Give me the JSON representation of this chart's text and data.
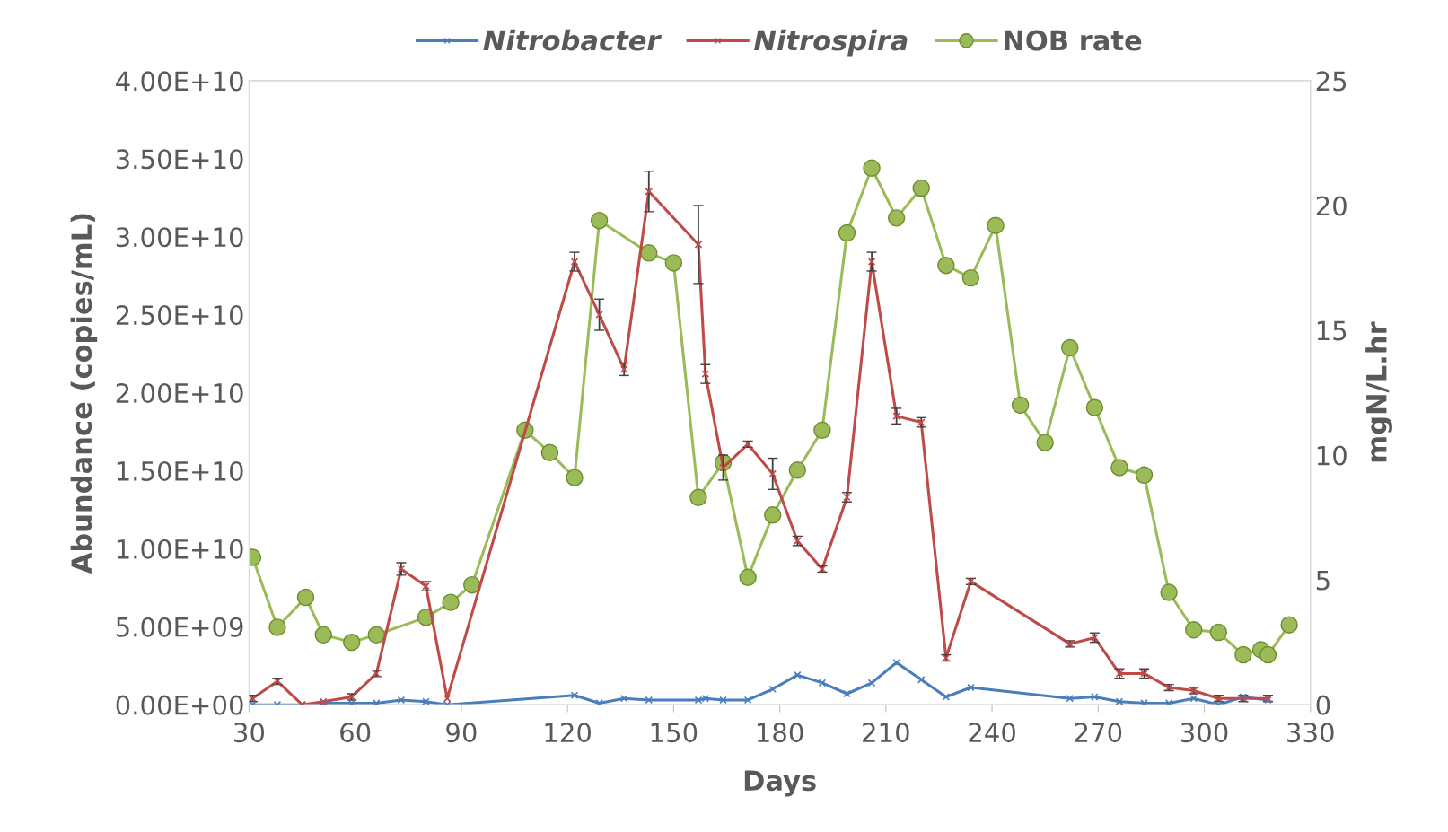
{
  "chart_data": {
    "type": "line",
    "xlabel": "Days",
    "ylabel": "Abundance (copies/mL)",
    "y2label": "mgN/L.hr",
    "xlim": [
      30,
      330
    ],
    "xticks": [
      30,
      60,
      90,
      120,
      150,
      180,
      210,
      240,
      270,
      300,
      330
    ],
    "ylim": [
      0,
      40000000000.0
    ],
    "yticks": [
      {
        "value": 0,
        "label": "0.00E+00"
      },
      {
        "value": 5000000000.0,
        "label": "5.00E+09"
      },
      {
        "value": 10000000000.0,
        "label": "1.00E+10"
      },
      {
        "value": 15000000000.0,
        "label": "1.50E+10"
      },
      {
        "value": 20000000000.0,
        "label": "2.00E+10"
      },
      {
        "value": 25000000000.0,
        "label": "2.50E+10"
      },
      {
        "value": 30000000000.0,
        "label": "3.00E+10"
      },
      {
        "value": 35000000000.0,
        "label": "3.50E+10"
      },
      {
        "value": 40000000000.0,
        "label": "4.00E+10"
      }
    ],
    "y2lim": [
      0,
      25
    ],
    "y2ticks": [
      0,
      5,
      10,
      15,
      20,
      25
    ],
    "legend": "top",
    "grid": false,
    "series": [
      {
        "name": "Nitrobacter",
        "color": "#4a7ebb",
        "marker": "cross",
        "x": [
          31,
          38,
          45,
          51,
          59,
          66,
          73,
          80,
          86,
          122,
          129,
          136,
          143,
          157,
          159,
          164,
          171,
          178,
          185,
          192,
          199,
          206,
          213,
          220,
          227,
          234,
          262,
          269,
          276,
          283,
          290,
          297,
          304,
          311,
          318
        ],
        "values": [
          0,
          0,
          0,
          100000000.0,
          100000000.0,
          100000000.0,
          300000000.0,
          200000000.0,
          0,
          600000000.0,
          100000000.0,
          400000000.0,
          300000000.0,
          300000000.0,
          400000000.0,
          300000000.0,
          300000000.0,
          1000000000.0,
          1900000000.0,
          1400000000.0,
          700000000.0,
          1400000000.0,
          2700000000.0,
          1600000000.0,
          500000000.0,
          1100000000.0,
          400000000.0,
          500000000.0,
          200000000.0,
          100000000.0,
          100000000.0,
          400000000.0,
          0,
          500000000.0,
          300000000.0
        ]
      },
      {
        "name": "Nitrospira",
        "color": "#be4b48",
        "marker": "cross",
        "x": [
          31,
          38,
          45,
          51,
          59,
          66,
          73,
          80,
          86,
          122,
          129,
          136,
          143,
          157,
          159,
          164,
          171,
          178,
          185,
          192,
          199,
          206,
          213,
          220,
          227,
          234,
          262,
          269,
          276,
          283,
          290,
          297,
          304,
          311,
          318
        ],
        "values": [
          400000000.0,
          1500000000.0,
          0,
          200000000.0,
          500000000.0,
          2000000000.0,
          8700000000.0,
          7600000000.0,
          400000000.0,
          28400000000.0,
          25000000000.0,
          21500000000.0,
          32900000000.0,
          29500000000.0,
          21200000000.0,
          15200000000.0,
          16700000000.0,
          14800000000.0,
          10500000000.0,
          8700000000.0,
          13300000000.0,
          28400000000.0,
          18500000000.0,
          18100000000.0,
          3000000000.0,
          7900000000.0,
          3900000000.0,
          4300000000.0,
          2000000000.0,
          2000000000.0,
          1100000000.0,
          900000000.0,
          400000000.0,
          400000000.0,
          400000000.0
        ],
        "errors": [
          200000000.0,
          200000000.0,
          null,
          null,
          200000000.0,
          200000000.0,
          400000000.0,
          300000000.0,
          null,
          600000000.0,
          1000000000.0,
          400000000.0,
          1300000000.0,
          2500000000.0,
          600000000.0,
          800000000.0,
          200000000.0,
          1000000000.0,
          300000000.0,
          200000000.0,
          300000000.0,
          600000000.0,
          500000000.0,
          300000000.0,
          200000000.0,
          200000000.0,
          200000000.0,
          300000000.0,
          300000000.0,
          300000000.0,
          200000000.0,
          200000000.0,
          200000000.0,
          200000000.0,
          200000000.0
        ]
      },
      {
        "name": "NOB rate",
        "color": "#9bbb59",
        "marker": "circle",
        "axis": "y2",
        "x": [
          31,
          38,
          46,
          51,
          59,
          66,
          80,
          87,
          93,
          108,
          115,
          122,
          129,
          143,
          150,
          157,
          164,
          171,
          178,
          185,
          192,
          199,
          206,
          213,
          220,
          227,
          234,
          241,
          248,
          255,
          262,
          269,
          276,
          283,
          290,
          297,
          304,
          311,
          316,
          318,
          324
        ],
        "values": [
          5.9,
          3.1,
          4.3,
          2.8,
          2.5,
          2.8,
          3.5,
          4.1,
          4.8,
          11.0,
          10.1,
          9.1,
          19.4,
          18.1,
          17.7,
          8.3,
          9.7,
          5.1,
          7.6,
          9.4,
          11.0,
          18.9,
          21.5,
          19.5,
          20.7,
          17.6,
          17.1,
          19.2,
          12.0,
          10.5,
          14.3,
          11.9,
          9.5,
          9.2,
          4.5,
          3.0,
          2.9,
          2.0,
          2.2,
          2.0,
          3.2
        ]
      }
    ]
  }
}
